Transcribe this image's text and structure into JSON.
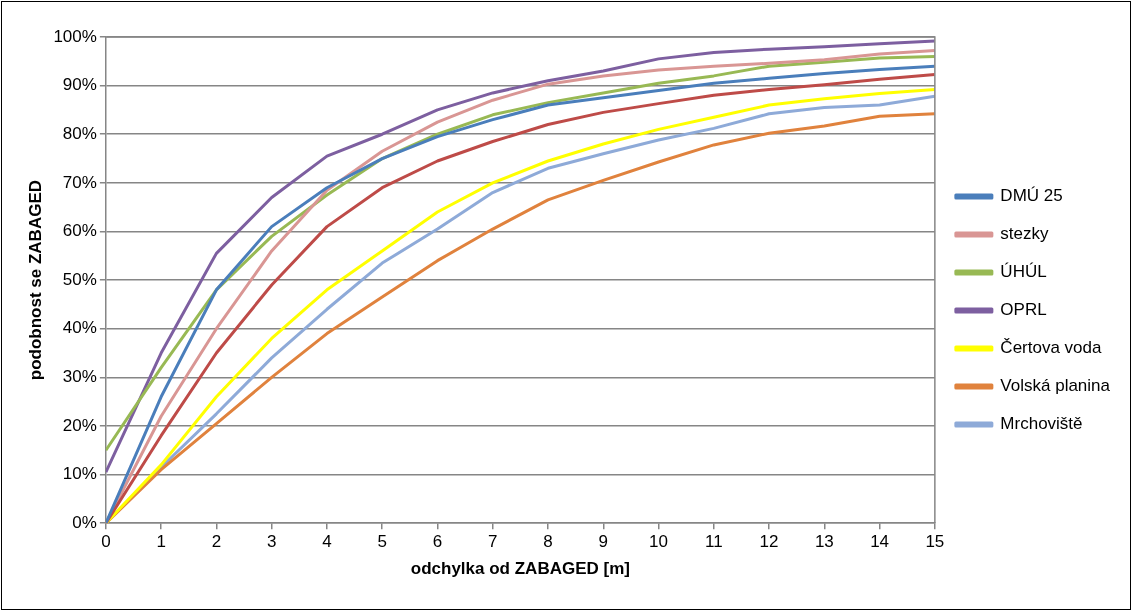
{
  "chart_data": {
    "type": "line",
    "x": [
      0,
      1,
      2,
      3,
      4,
      5,
      6,
      7,
      8,
      9,
      10,
      11,
      12,
      13,
      14,
      15
    ],
    "xlim": [
      0,
      15
    ],
    "xticks": [
      0,
      1,
      2,
      3,
      4,
      5,
      6,
      7,
      8,
      9,
      10,
      11,
      12,
      13,
      14,
      15
    ],
    "ylim": [
      0,
      100
    ],
    "yticks": [
      {
        "value": 0,
        "label": "0%"
      },
      {
        "value": 10,
        "label": "10%"
      },
      {
        "value": 20,
        "label": "20%"
      },
      {
        "value": 30,
        "label": "30%"
      },
      {
        "value": 40,
        "label": "40%"
      },
      {
        "value": 50,
        "label": "50%"
      },
      {
        "value": 60,
        "label": "60%"
      },
      {
        "value": 70,
        "label": "70%"
      },
      {
        "value": 80,
        "label": "80%"
      },
      {
        "value": 90,
        "label": "90%"
      },
      {
        "value": 100,
        "label": "100%"
      }
    ],
    "xlabel": "odchylka od ZABAGED [m]",
    "ylabel": "podobnost se ZABAGED",
    "grid": "y",
    "legend": "right",
    "marker": "none",
    "series": [
      {
        "name": "DMÚ 25",
        "color": "#4a7ebb",
        "values": [
          0,
          26,
          48,
          61,
          69,
          75,
          79.5,
          83,
          86,
          87.5,
          89,
          90.5,
          91.5,
          92.5,
          93.3,
          94
        ]
      },
      {
        "color": "#be4b48",
        "values": [
          0,
          18,
          35,
          49,
          61,
          69,
          74.5,
          78.5,
          82,
          84.5,
          86.3,
          88,
          89.2,
          90.2,
          91.3,
          92.3
        ]
      },
      {
        "name": "stezky",
        "color": "#d99694",
        "values": [
          0,
          22,
          40,
          56,
          68.5,
          76.5,
          82.5,
          87,
          90.3,
          92,
          93.2,
          94,
          94.6,
          95.3,
          96.5,
          97.2
        ]
      },
      {
        "name": "ÚHÚL",
        "color": "#98b954",
        "values": [
          15,
          32,
          48,
          59,
          67.5,
          75,
          80,
          84,
          86.5,
          88.5,
          90.5,
          92,
          94,
          94.8,
          95.7,
          96
        ]
      },
      {
        "name": "OPRL",
        "color": "#7d5fa0",
        "values": [
          10.5,
          35,
          55.5,
          67,
          75.5,
          80,
          85,
          88.5,
          91,
          93,
          95.5,
          96.8,
          97.5,
          98,
          98.6,
          99.2
        ]
      },
      {
        "name": "Čertova voda",
        "color": "#ffff00",
        "values": [
          0,
          12,
          26,
          38,
          48,
          56,
          64,
          70,
          74.5,
          78,
          81,
          83.5,
          86,
          87.3,
          88.4,
          89.2
        ]
      },
      {
        "name": "Volská planina",
        "color": "#e0823d",
        "values": [
          0,
          11,
          20.5,
          30,
          39,
          46.5,
          54,
          60.5,
          66.5,
          70.5,
          74.3,
          77.8,
          80.2,
          81.7,
          83.7,
          84.2
        ]
      },
      {
        "name": "Mrchoviště",
        "color": "#8eaad8",
        "values": [
          0,
          11.5,
          22.5,
          34,
          44,
          53.5,
          60.5,
          68,
          73,
          76,
          78.8,
          81.2,
          84.2,
          85.5,
          86,
          87.8
        ]
      }
    ]
  }
}
